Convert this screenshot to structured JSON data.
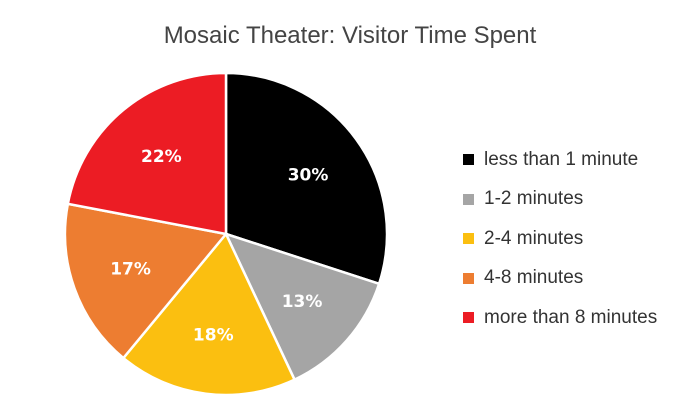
{
  "chart_data": {
    "type": "pie",
    "title": "Mosaic Theater: Visitor Time Spent",
    "categories": [
      "less than 1 minute",
      "1-2 minutes",
      "2-4 minutes",
      "4-8 minutes",
      "more than 8 minutes"
    ],
    "values": [
      30,
      13,
      18,
      17,
      22
    ],
    "labels": [
      "30%",
      "13%",
      "18%",
      "17%",
      "22%"
    ],
    "colors": [
      "#000000",
      "#a5a5a5",
      "#fbbf10",
      "#ed7d31",
      "#ec1c24"
    ],
    "legend_position": "right",
    "start_angle": "12 o'clock, clockwise"
  },
  "legend": [
    {
      "label": "less than 1 minute",
      "color": "#000000"
    },
    {
      "label": "1-2 minutes",
      "color": "#a5a5a5"
    },
    {
      "label": "2-4 minutes",
      "color": "#fbbf10"
    },
    {
      "label": "4-8 minutes",
      "color": "#ed7d31"
    },
    {
      "label": "more than 8 minutes",
      "color": "#ec1c24"
    }
  ]
}
